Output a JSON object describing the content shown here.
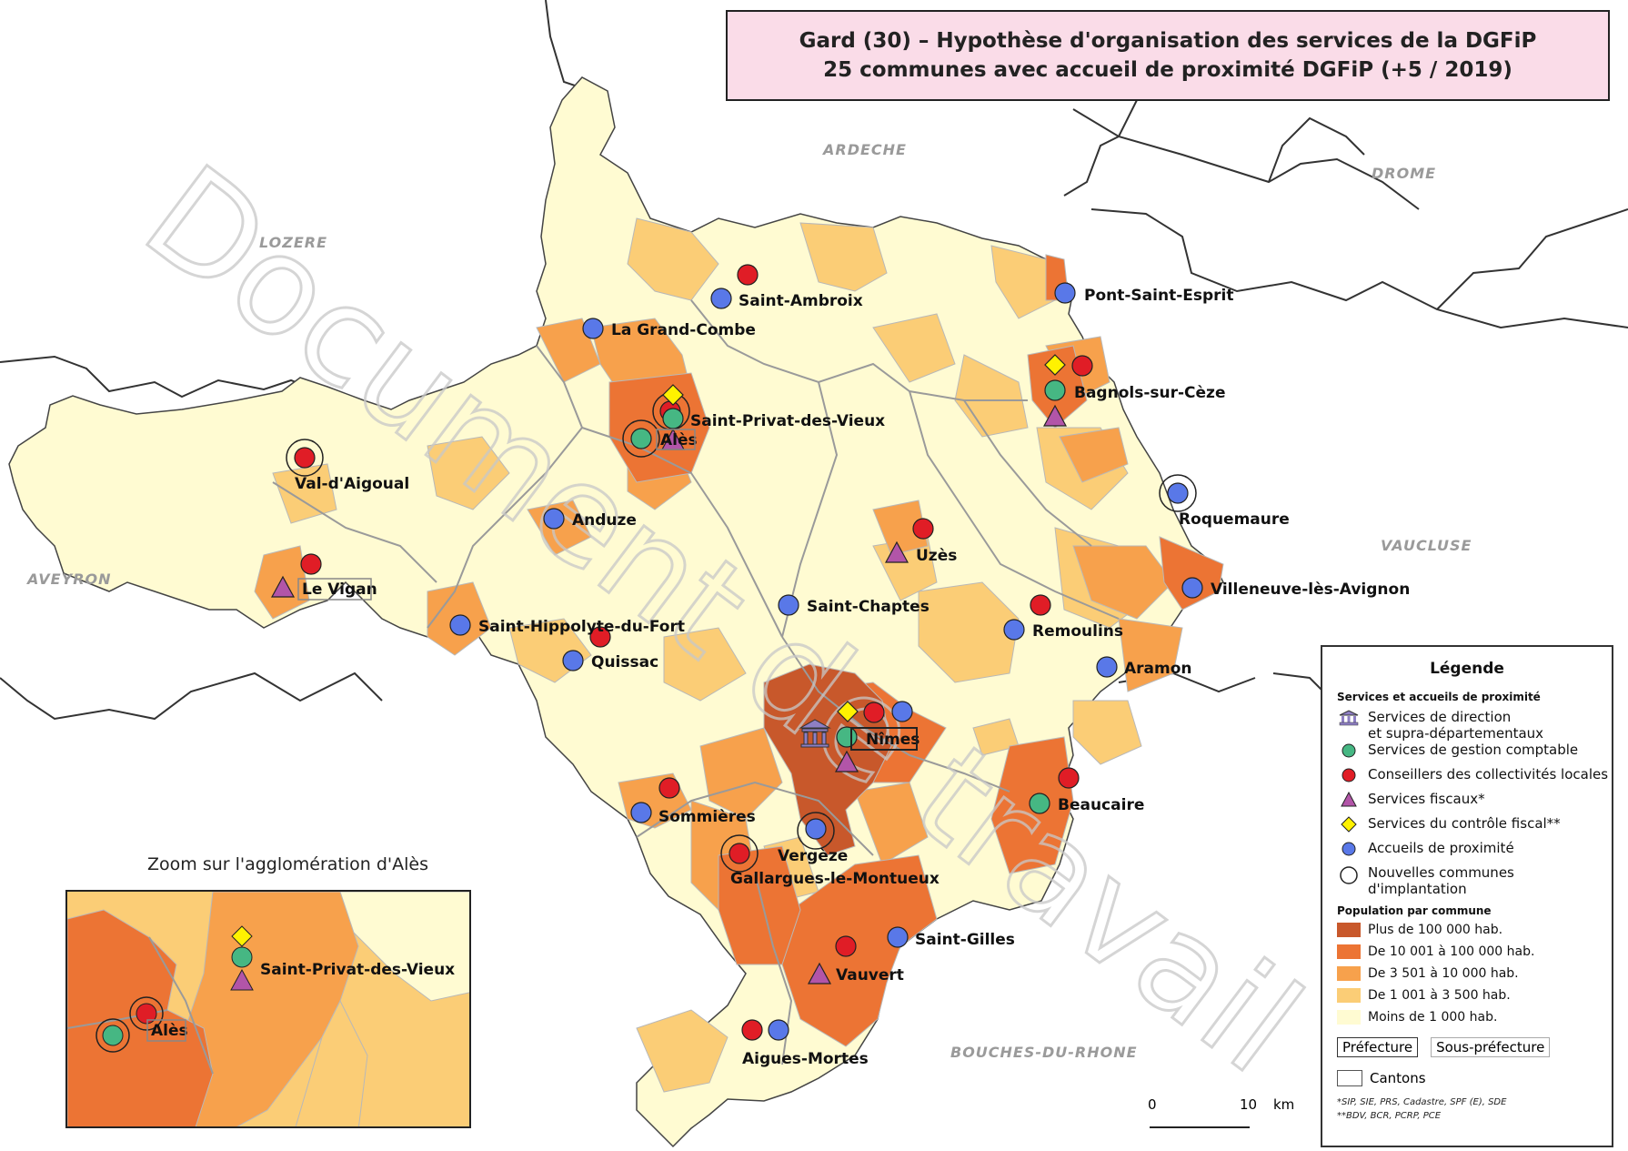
{
  "title": {
    "line1": "Gard (30) – Hypothèse d'organisation des services de la DGFiP",
    "line2": "25 communes avec accueil de proximité DGFiP (+5 / 2019)"
  },
  "watermark": "Document de travail",
  "neighbours": {
    "lozere": "LOZERE",
    "ardeche": "ARDECHE",
    "drome": "DROME",
    "aveyron": "AVEYRON",
    "vaucluse": "VAUCLUSE",
    "bdr": "BOUCHES-DU-RHONE"
  },
  "places": {
    "saint_ambroix": "Saint-Ambroix",
    "la_grand_combe": "La Grand-Combe",
    "pont_saint_esprit": "Pont-Saint-Esprit",
    "bagnols": "Bagnols-sur-Cèze",
    "saint_privat": "Saint-Privat-des-Vieux",
    "ales": "Alès",
    "val_daigoual": "Val-d'Aigoual",
    "anduze": "Anduze",
    "le_vigan": "Le Vigan",
    "uzes": "Uzès",
    "roquemaure": "Roquemaure",
    "villeneuve": "Villeneuve-lès-Avignon",
    "saint_chaptes": "Saint-Chaptes",
    "remoulins": "Remoulins",
    "saint_hippolyte": "Saint-Hippolyte-du-Fort",
    "quissac": "Quissac",
    "aramon": "Aramon",
    "nimes": "Nîmes",
    "beaucaire": "Beaucaire",
    "sommieres": "Sommières",
    "vergeze": "Vergèze",
    "gallargues": "Gallargues-le-Montueux",
    "saint_gilles": "Saint-Gilles",
    "vauvert": "Vauvert",
    "aigues_mortes": "Aigues-Mortes"
  },
  "zoom": {
    "title": "Zoom sur l'agglomération d'Alès",
    "saint_privat": "Saint-Privat-des-Vieux",
    "ales": "Alès"
  },
  "legend": {
    "title": "Légende",
    "services_header": "Services et accueils de proximité",
    "direction_line1": "Services de direction",
    "direction_line2": "et supra-départementaux",
    "gestion": "Services de gestion comptable",
    "conseillers": "Conseillers des collectivités locales",
    "fiscaux": "Services fiscaux*",
    "controle": "Services du contrôle fiscal**",
    "accueils": "Accueils de proximité",
    "nouvelles": "Nouvelles communes d'implantation",
    "population_header": "Population par commune",
    "pop": [
      {
        "label": "Plus de 100 000 hab.",
        "color": "#c8582b"
      },
      {
        "label": "De 10 001 à 100 000 hab.",
        "color": "#ec7434"
      },
      {
        "label": "De 3 501 à  10 000 hab.",
        "color": "#f7a14c"
      },
      {
        "label": "De 1 001 à  3 500 hab.",
        "color": "#fbcd76"
      },
      {
        "label": "Moins de 1 000 hab.",
        "color": "#fffbd2"
      }
    ],
    "prefecture": "Préfecture",
    "sous_prefecture": "Sous-préfecture",
    "cantons": "Cantons",
    "note1": "*SIP, SIE, PRS, Cadastre, SPF (E), SDE",
    "note2": "**BDV, BCR, PCRP, PCE"
  },
  "scale": {
    "zero": "0",
    "ten": "10",
    "unit": "km"
  },
  "colors": {
    "green": "#46b783",
    "red": "#e01d26",
    "purple": "#b255a8",
    "yellow": "#fff200",
    "blue": "#5978e8"
  }
}
